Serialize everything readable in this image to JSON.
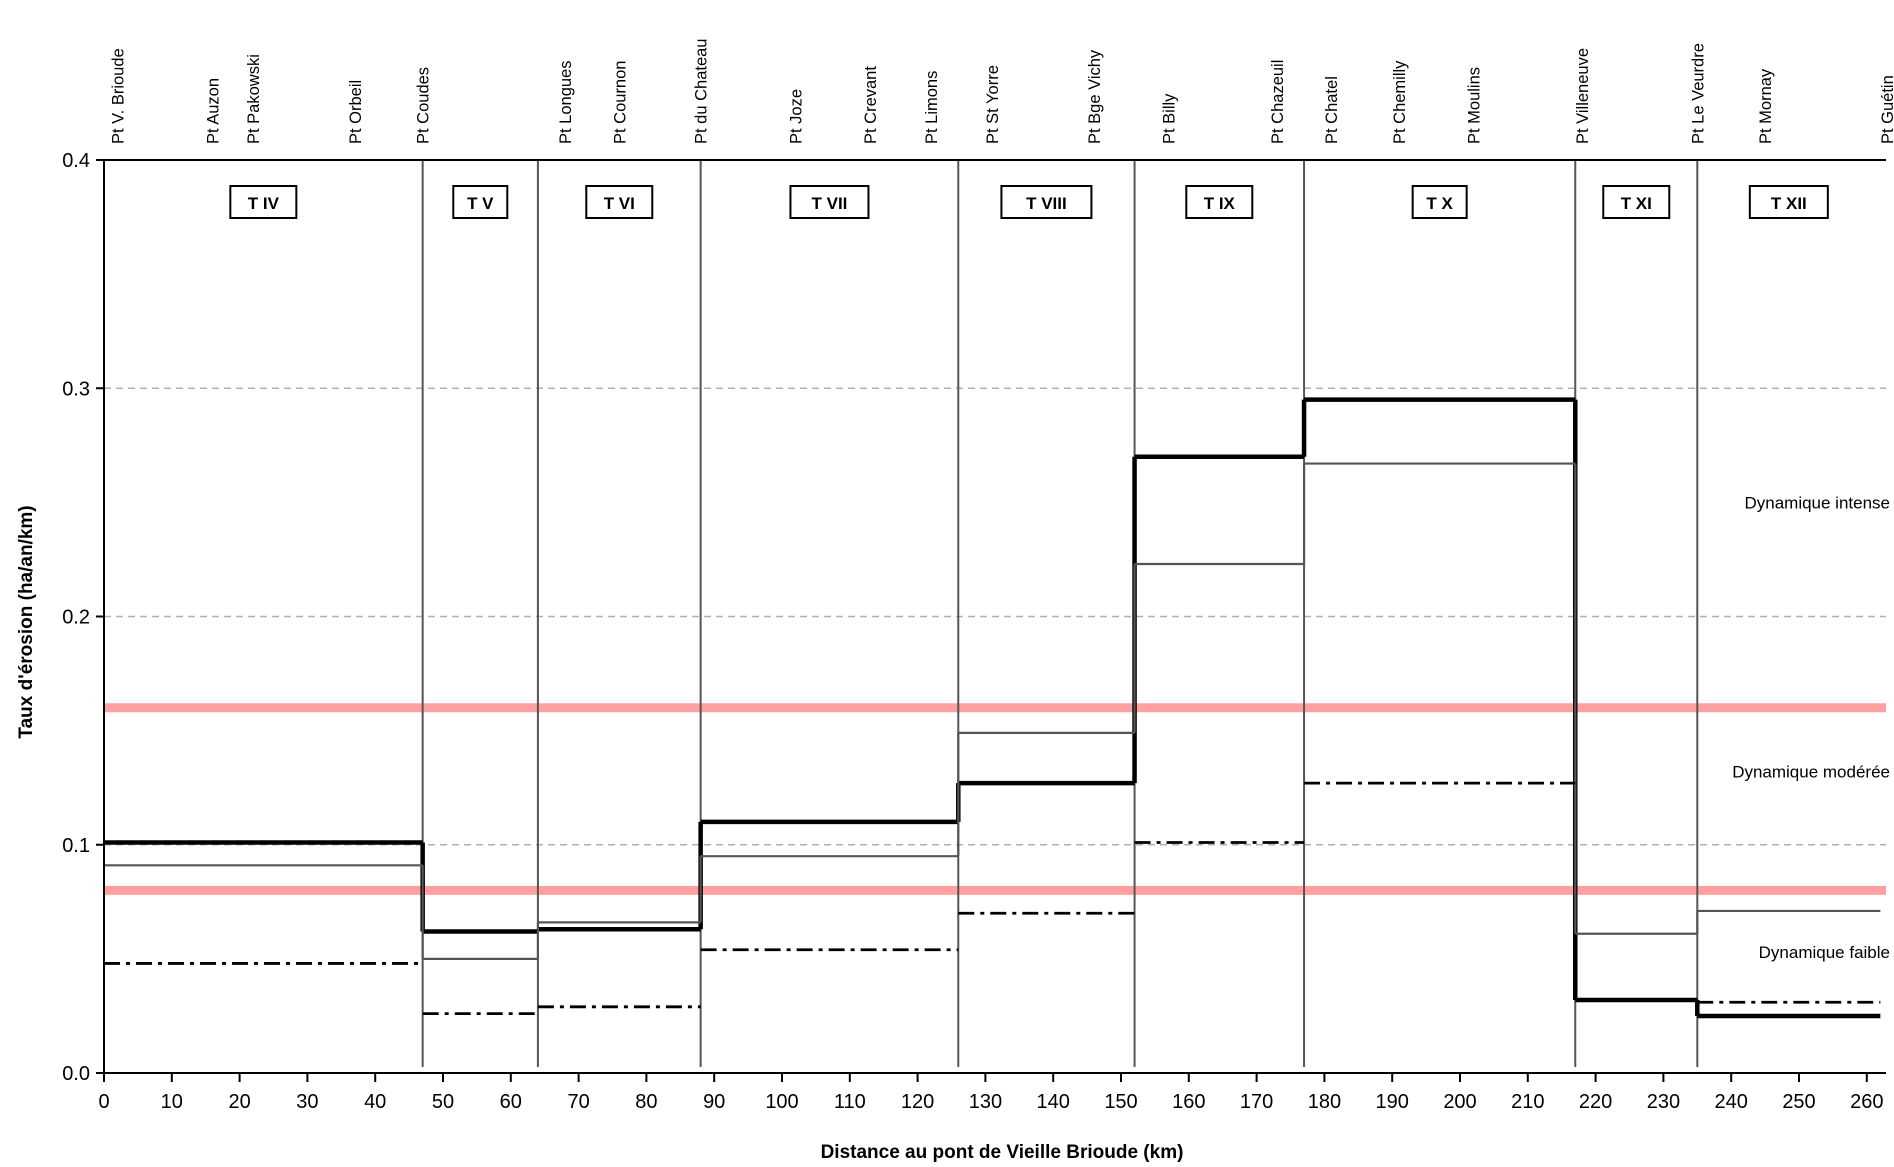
{
  "chart_data": {
    "type": "line",
    "xlabel": "Distance au pont de Vieille Brioude (km)",
    "ylabel": "Taux d'érosion (ha/an/km)",
    "xlim": [
      0,
      262
    ],
    "ylim": [
      0,
      0.4
    ],
    "x_ticks": [
      0,
      10,
      20,
      30,
      40,
      50,
      60,
      70,
      80,
      90,
      100,
      110,
      120,
      130,
      140,
      150,
      160,
      170,
      180,
      190,
      200,
      210,
      220,
      230,
      240,
      250,
      260
    ],
    "y_ticks": [
      "0.0",
      "0.1",
      "0.2",
      "0.3",
      "0.4"
    ],
    "grid": "horizontal dashed at 0.1, 0.2, 0.3",
    "bridges": [
      {
        "name": "Pt V. Brioude",
        "km": 2
      },
      {
        "name": "Pt Auzon",
        "km": 16
      },
      {
        "name": "Pt Pakowski",
        "km": 22
      },
      {
        "name": "Pt Orbeil",
        "km": 37
      },
      {
        "name": "Pt Coudes",
        "km": 47
      },
      {
        "name": "Pt Longues",
        "km": 68
      },
      {
        "name": "Pt Cournon",
        "km": 76
      },
      {
        "name": "Pt du Chateau",
        "km": 88
      },
      {
        "name": "Pt Joze",
        "km": 102
      },
      {
        "name": "Pt Crevant",
        "km": 113
      },
      {
        "name": "Pt Limons",
        "km": 122
      },
      {
        "name": "Pt St Yorre",
        "km": 131
      },
      {
        "name": "Pt Bge Vichy",
        "km": 146
      },
      {
        "name": "Pt Billy",
        "km": 157
      },
      {
        "name": "Pt Chazeuil",
        "km": 173
      },
      {
        "name": "Pt Chatel",
        "km": 181
      },
      {
        "name": "Pt Chemilly",
        "km": 191
      },
      {
        "name": "Pt Moulins",
        "km": 202
      },
      {
        "name": "Pt Villeneuve",
        "km": 218
      },
      {
        "name": "Pt Le Veurdre",
        "km": 235
      },
      {
        "name": "Pt Mornay",
        "km": 245
      },
      {
        "name": "Pt Guétin",
        "km": 263
      }
    ],
    "segments": [
      {
        "label": "T IV",
        "start": 0,
        "end": 47
      },
      {
        "label": "T V",
        "start": 47,
        "end": 64
      },
      {
        "label": "T VI",
        "start": 64,
        "end": 88
      },
      {
        "label": "T VII",
        "start": 88,
        "end": 126
      },
      {
        "label": "T VIII",
        "start": 126,
        "end": 152
      },
      {
        "label": "T IX",
        "start": 152,
        "end": 177
      },
      {
        "label": "T X",
        "start": 177,
        "end": 217
      },
      {
        "label": "T XI",
        "start": 217,
        "end": 235
      },
      {
        "label": "T XII",
        "start": 235,
        "end": 262
      }
    ],
    "series": [
      {
        "style": "thick-solid",
        "color": "#000000",
        "values": [
          0.101,
          0.062,
          0.063,
          0.11,
          0.127,
          0.27,
          0.295,
          0.032,
          0.025
        ]
      },
      {
        "style": "thin-solid",
        "color": "#555555",
        "values": [
          0.091,
          0.05,
          0.066,
          0.095,
          0.149,
          0.223,
          0.267,
          0.061,
          0.071
        ]
      },
      {
        "style": "dash-dot",
        "color": "#000000",
        "values": [
          0.048,
          0.026,
          0.029,
          0.054,
          0.07,
          0.101,
          0.127,
          null,
          0.031
        ]
      }
    ],
    "thresholds": [
      {
        "y": 0.16,
        "color": "#ff8080"
      },
      {
        "y": 0.08,
        "color": "#ff8080"
      }
    ],
    "zones": [
      {
        "label": "Dynamique intense",
        "y": 0.25
      },
      {
        "label": "Dynamique modérée",
        "y": 0.132
      },
      {
        "label": "Dynamique faible",
        "y": 0.053
      }
    ]
  }
}
